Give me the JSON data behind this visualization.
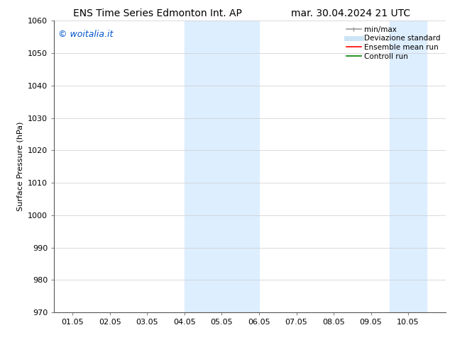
{
  "title_left": "ENS Time Series Edmonton Int. AP",
  "title_right": "mar. 30.04.2024 21 UTC",
  "ylabel": "Surface Pressure (hPa)",
  "ylim": [
    970,
    1060
  ],
  "yticks": [
    970,
    980,
    990,
    1000,
    1010,
    1020,
    1030,
    1040,
    1050,
    1060
  ],
  "xtick_labels": [
    "01.05",
    "02.05",
    "03.05",
    "04.05",
    "05.05",
    "06.05",
    "07.05",
    "08.05",
    "09.05",
    "10.05"
  ],
  "xtick_positions": [
    0,
    1,
    2,
    3,
    4,
    5,
    6,
    7,
    8,
    9
  ],
  "xlim": [
    -0.5,
    10.0
  ],
  "shade_bands": [
    {
      "x_start": 3.0,
      "x_end": 5.0
    },
    {
      "x_start": 8.5,
      "x_end": 9.5
    }
  ],
  "shade_color": "#ddeeff",
  "watermark_text": "© woitalia.it",
  "watermark_color": "#0055cc",
  "legend_labels": [
    "min/max",
    "Deviazione standard",
    "Ensemble mean run",
    "Controll run"
  ],
  "legend_colors": [
    "#999999",
    "#cce4f5",
    "red",
    "green"
  ],
  "bg_color": "#ffffff",
  "grid_color": "#cccccc",
  "title_fontsize": 10,
  "axis_fontsize": 8,
  "tick_fontsize": 8,
  "watermark_fontsize": 9,
  "legend_fontsize": 7.5
}
